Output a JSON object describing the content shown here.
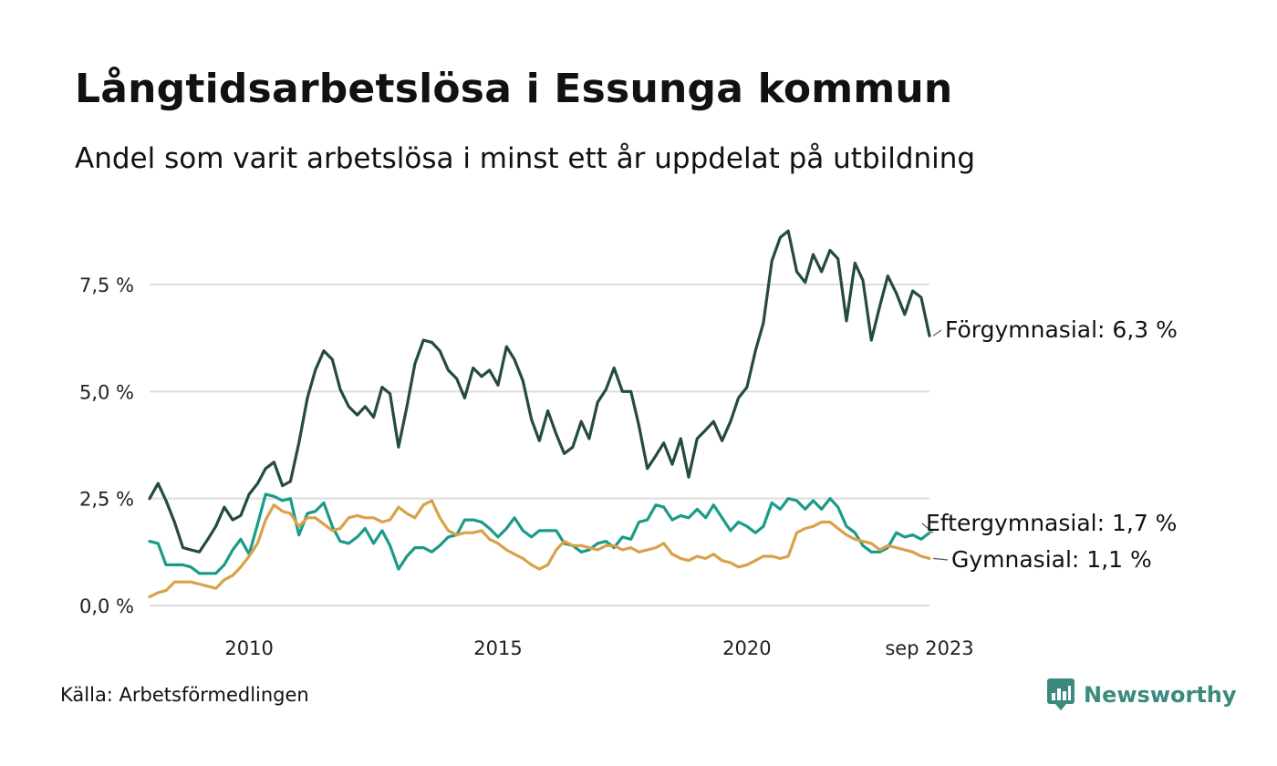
{
  "title": "Långtidsarbetslösa i Essunga kommun",
  "subtitle": "Andel som varit arbetslösa i minst ett år uppdelat på utbildning",
  "source": "Källa: Arbetsförmedlingen",
  "brand": {
    "name": "Newsworthy",
    "icon": "newsworthy-logo-icon",
    "color": "#3c8a7e"
  },
  "chart_data": {
    "type": "line",
    "title": "Långtidsarbetslösa i Essunga kommun",
    "ylabel": "",
    "xlabel": "",
    "ylim": [
      0,
      9.1
    ],
    "xlim": [
      2008.0,
      2023.667
    ],
    "yticks": [
      {
        "value": 0.0,
        "label": "0,0 %"
      },
      {
        "value": 2.5,
        "label": "2,5 %"
      },
      {
        "value": 5.0,
        "label": "5,0 %"
      },
      {
        "value": 7.5,
        "label": "7,5 %"
      }
    ],
    "xticks": [
      {
        "value": 2010.0,
        "label": "2010"
      },
      {
        "value": 2015.0,
        "label": "2015"
      },
      {
        "value": 2020.0,
        "label": "2020"
      },
      {
        "value": 2023.667,
        "label": "sep 2023"
      }
    ],
    "grid": true,
    "series": [
      {
        "name": "Förgymnasial",
        "end_label": "Förgymnasial: 6,3 %",
        "color": "#244a42",
        "points": [
          [
            2008.0,
            2.5
          ],
          [
            2008.17,
            2.85
          ],
          [
            2008.33,
            2.45
          ],
          [
            2008.5,
            1.95
          ],
          [
            2008.67,
            1.35
          ],
          [
            2008.83,
            1.3
          ],
          [
            2009.0,
            1.25
          ],
          [
            2009.17,
            1.55
          ],
          [
            2009.33,
            1.85
          ],
          [
            2009.5,
            2.3
          ],
          [
            2009.67,
            2.0
          ],
          [
            2009.83,
            2.1
          ],
          [
            2010.0,
            2.6
          ],
          [
            2010.17,
            2.85
          ],
          [
            2010.33,
            3.2
          ],
          [
            2010.5,
            3.35
          ],
          [
            2010.67,
            2.8
          ],
          [
            2010.83,
            2.9
          ],
          [
            2011.0,
            3.8
          ],
          [
            2011.17,
            4.85
          ],
          [
            2011.33,
            5.5
          ],
          [
            2011.5,
            5.95
          ],
          [
            2011.67,
            5.75
          ],
          [
            2011.83,
            5.05
          ],
          [
            2012.0,
            4.65
          ],
          [
            2012.17,
            4.45
          ],
          [
            2012.33,
            4.65
          ],
          [
            2012.5,
            4.4
          ],
          [
            2012.67,
            5.1
          ],
          [
            2012.83,
            4.95
          ],
          [
            2013.0,
            3.7
          ],
          [
            2013.17,
            4.65
          ],
          [
            2013.33,
            5.65
          ],
          [
            2013.5,
            6.2
          ],
          [
            2013.67,
            6.15
          ],
          [
            2013.83,
            5.95
          ],
          [
            2014.0,
            5.5
          ],
          [
            2014.17,
            5.3
          ],
          [
            2014.33,
            4.85
          ],
          [
            2014.5,
            5.55
          ],
          [
            2014.67,
            5.35
          ],
          [
            2014.83,
            5.5
          ],
          [
            2015.0,
            5.15
          ],
          [
            2015.17,
            6.05
          ],
          [
            2015.33,
            5.75
          ],
          [
            2015.5,
            5.25
          ],
          [
            2015.67,
            4.35
          ],
          [
            2015.83,
            3.85
          ],
          [
            2016.0,
            4.55
          ],
          [
            2016.17,
            4.0
          ],
          [
            2016.33,
            3.55
          ],
          [
            2016.5,
            3.7
          ],
          [
            2016.67,
            4.3
          ],
          [
            2016.83,
            3.9
          ],
          [
            2017.0,
            4.75
          ],
          [
            2017.17,
            5.05
          ],
          [
            2017.33,
            5.55
          ],
          [
            2017.5,
            5.0
          ],
          [
            2017.67,
            5.0
          ],
          [
            2017.83,
            4.2
          ],
          [
            2018.0,
            3.2
          ],
          [
            2018.17,
            3.5
          ],
          [
            2018.33,
            3.8
          ],
          [
            2018.5,
            3.3
          ],
          [
            2018.67,
            3.9
          ],
          [
            2018.83,
            3.0
          ],
          [
            2019.0,
            3.9
          ],
          [
            2019.17,
            4.1
          ],
          [
            2019.33,
            4.3
          ],
          [
            2019.5,
            3.85
          ],
          [
            2019.67,
            4.3
          ],
          [
            2019.83,
            4.85
          ],
          [
            2020.0,
            5.1
          ],
          [
            2020.17,
            5.95
          ],
          [
            2020.33,
            6.6
          ],
          [
            2020.5,
            8.05
          ],
          [
            2020.67,
            8.6
          ],
          [
            2020.83,
            8.75
          ],
          [
            2021.0,
            7.8
          ],
          [
            2021.17,
            7.55
          ],
          [
            2021.33,
            8.2
          ],
          [
            2021.5,
            7.8
          ],
          [
            2021.67,
            8.3
          ],
          [
            2021.83,
            8.1
          ],
          [
            2022.0,
            6.65
          ],
          [
            2022.17,
            8.0
          ],
          [
            2022.33,
            7.6
          ],
          [
            2022.5,
            6.2
          ],
          [
            2022.67,
            7.0
          ],
          [
            2022.83,
            7.7
          ],
          [
            2023.0,
            7.3
          ],
          [
            2023.17,
            6.8
          ],
          [
            2023.33,
            7.35
          ],
          [
            2023.5,
            7.2
          ],
          [
            2023.667,
            6.3
          ]
        ]
      },
      {
        "name": "Eftergymnasial",
        "end_label": "Eftergymnasial: 1,7 %",
        "color": "#1a9b89",
        "points": [
          [
            2008.0,
            1.5
          ],
          [
            2008.17,
            1.45
          ],
          [
            2008.33,
            0.95
          ],
          [
            2008.5,
            0.95
          ],
          [
            2008.67,
            0.95
          ],
          [
            2008.83,
            0.9
          ],
          [
            2009.0,
            0.75
          ],
          [
            2009.17,
            0.75
          ],
          [
            2009.33,
            0.75
          ],
          [
            2009.5,
            0.95
          ],
          [
            2009.67,
            1.3
          ],
          [
            2009.83,
            1.55
          ],
          [
            2010.0,
            1.2
          ],
          [
            2010.17,
            1.9
          ],
          [
            2010.33,
            2.6
          ],
          [
            2010.5,
            2.55
          ],
          [
            2010.67,
            2.45
          ],
          [
            2010.83,
            2.5
          ],
          [
            2011.0,
            1.65
          ],
          [
            2011.17,
            2.15
          ],
          [
            2011.33,
            2.2
          ],
          [
            2011.5,
            2.4
          ],
          [
            2011.67,
            1.85
          ],
          [
            2011.83,
            1.5
          ],
          [
            2012.0,
            1.45
          ],
          [
            2012.17,
            1.6
          ],
          [
            2012.33,
            1.8
          ],
          [
            2012.5,
            1.45
          ],
          [
            2012.67,
            1.75
          ],
          [
            2012.83,
            1.4
          ],
          [
            2013.0,
            0.85
          ],
          [
            2013.17,
            1.15
          ],
          [
            2013.33,
            1.35
          ],
          [
            2013.5,
            1.35
          ],
          [
            2013.67,
            1.25
          ],
          [
            2013.83,
            1.4
          ],
          [
            2014.0,
            1.6
          ],
          [
            2014.17,
            1.65
          ],
          [
            2014.33,
            2.0
          ],
          [
            2014.5,
            2.0
          ],
          [
            2014.67,
            1.95
          ],
          [
            2014.83,
            1.8
          ],
          [
            2015.0,
            1.6
          ],
          [
            2015.17,
            1.8
          ],
          [
            2015.33,
            2.05
          ],
          [
            2015.5,
            1.75
          ],
          [
            2015.67,
            1.6
          ],
          [
            2015.83,
            1.75
          ],
          [
            2016.0,
            1.75
          ],
          [
            2016.17,
            1.75
          ],
          [
            2016.33,
            1.45
          ],
          [
            2016.5,
            1.4
          ],
          [
            2016.67,
            1.25
          ],
          [
            2016.83,
            1.3
          ],
          [
            2017.0,
            1.45
          ],
          [
            2017.17,
            1.5
          ],
          [
            2017.33,
            1.35
          ],
          [
            2017.5,
            1.6
          ],
          [
            2017.67,
            1.55
          ],
          [
            2017.83,
            1.95
          ],
          [
            2018.0,
            2.0
          ],
          [
            2018.17,
            2.35
          ],
          [
            2018.33,
            2.3
          ],
          [
            2018.5,
            2.0
          ],
          [
            2018.67,
            2.1
          ],
          [
            2018.83,
            2.05
          ],
          [
            2019.0,
            2.25
          ],
          [
            2019.17,
            2.05
          ],
          [
            2019.33,
            2.35
          ],
          [
            2019.5,
            2.05
          ],
          [
            2019.67,
            1.75
          ],
          [
            2019.83,
            1.95
          ],
          [
            2020.0,
            1.85
          ],
          [
            2020.17,
            1.7
          ],
          [
            2020.33,
            1.85
          ],
          [
            2020.5,
            2.4
          ],
          [
            2020.67,
            2.25
          ],
          [
            2020.83,
            2.5
          ],
          [
            2021.0,
            2.45
          ],
          [
            2021.17,
            2.25
          ],
          [
            2021.33,
            2.45
          ],
          [
            2021.5,
            2.25
          ],
          [
            2021.67,
            2.5
          ],
          [
            2021.83,
            2.3
          ],
          [
            2022.0,
            1.85
          ],
          [
            2022.17,
            1.7
          ],
          [
            2022.33,
            1.4
          ],
          [
            2022.5,
            1.25
          ],
          [
            2022.67,
            1.25
          ],
          [
            2022.83,
            1.35
          ],
          [
            2023.0,
            1.7
          ],
          [
            2023.17,
            1.6
          ],
          [
            2023.33,
            1.65
          ],
          [
            2023.5,
            1.55
          ],
          [
            2023.667,
            1.7
          ]
        ]
      },
      {
        "name": "Gymnasial",
        "end_label": "Gymnasial: 1,1 %",
        "color": "#d9a14a",
        "points": [
          [
            2008.0,
            0.2
          ],
          [
            2008.17,
            0.3
          ],
          [
            2008.33,
            0.35
          ],
          [
            2008.5,
            0.55
          ],
          [
            2008.67,
            0.55
          ],
          [
            2008.83,
            0.55
          ],
          [
            2009.0,
            0.5
          ],
          [
            2009.17,
            0.45
          ],
          [
            2009.33,
            0.4
          ],
          [
            2009.5,
            0.6
          ],
          [
            2009.67,
            0.7
          ],
          [
            2009.83,
            0.9
          ],
          [
            2010.0,
            1.15
          ],
          [
            2010.17,
            1.45
          ],
          [
            2010.33,
            2.0
          ],
          [
            2010.5,
            2.35
          ],
          [
            2010.67,
            2.2
          ],
          [
            2010.83,
            2.15
          ],
          [
            2011.0,
            1.85
          ],
          [
            2011.17,
            2.05
          ],
          [
            2011.33,
            2.05
          ],
          [
            2011.5,
            1.9
          ],
          [
            2011.67,
            1.75
          ],
          [
            2011.83,
            1.8
          ],
          [
            2012.0,
            2.05
          ],
          [
            2012.17,
            2.1
          ],
          [
            2012.33,
            2.05
          ],
          [
            2012.5,
            2.05
          ],
          [
            2012.67,
            1.95
          ],
          [
            2012.83,
            2.0
          ],
          [
            2013.0,
            2.3
          ],
          [
            2013.17,
            2.15
          ],
          [
            2013.33,
            2.05
          ],
          [
            2013.5,
            2.35
          ],
          [
            2013.67,
            2.45
          ],
          [
            2013.83,
            2.05
          ],
          [
            2014.0,
            1.75
          ],
          [
            2014.17,
            1.65
          ],
          [
            2014.33,
            1.7
          ],
          [
            2014.5,
            1.7
          ],
          [
            2014.67,
            1.75
          ],
          [
            2014.83,
            1.55
          ],
          [
            2015.0,
            1.45
          ],
          [
            2015.17,
            1.3
          ],
          [
            2015.33,
            1.2
          ],
          [
            2015.5,
            1.1
          ],
          [
            2015.67,
            0.95
          ],
          [
            2015.83,
            0.85
          ],
          [
            2016.0,
            0.95
          ],
          [
            2016.17,
            1.3
          ],
          [
            2016.33,
            1.5
          ],
          [
            2016.5,
            1.4
          ],
          [
            2016.67,
            1.4
          ],
          [
            2016.83,
            1.35
          ],
          [
            2017.0,
            1.3
          ],
          [
            2017.17,
            1.4
          ],
          [
            2017.33,
            1.4
          ],
          [
            2017.5,
            1.3
          ],
          [
            2017.67,
            1.35
          ],
          [
            2017.83,
            1.25
          ],
          [
            2018.0,
            1.3
          ],
          [
            2018.17,
            1.35
          ],
          [
            2018.33,
            1.45
          ],
          [
            2018.5,
            1.2
          ],
          [
            2018.67,
            1.1
          ],
          [
            2018.83,
            1.05
          ],
          [
            2019.0,
            1.15
          ],
          [
            2019.17,
            1.1
          ],
          [
            2019.33,
            1.2
          ],
          [
            2019.5,
            1.05
          ],
          [
            2019.67,
            1.0
          ],
          [
            2019.83,
            0.9
          ],
          [
            2020.0,
            0.95
          ],
          [
            2020.17,
            1.05
          ],
          [
            2020.33,
            1.15
          ],
          [
            2020.5,
            1.15
          ],
          [
            2020.67,
            1.1
          ],
          [
            2020.83,
            1.15
          ],
          [
            2021.0,
            1.7
          ],
          [
            2021.17,
            1.8
          ],
          [
            2021.33,
            1.85
          ],
          [
            2021.5,
            1.95
          ],
          [
            2021.67,
            1.95
          ],
          [
            2021.83,
            1.8
          ],
          [
            2022.0,
            1.65
          ],
          [
            2022.17,
            1.55
          ],
          [
            2022.33,
            1.5
          ],
          [
            2022.5,
            1.45
          ],
          [
            2022.67,
            1.3
          ],
          [
            2022.83,
            1.4
          ],
          [
            2023.0,
            1.35
          ],
          [
            2023.17,
            1.3
          ],
          [
            2023.33,
            1.25
          ],
          [
            2023.5,
            1.15
          ],
          [
            2023.667,
            1.1
          ]
        ]
      }
    ]
  }
}
